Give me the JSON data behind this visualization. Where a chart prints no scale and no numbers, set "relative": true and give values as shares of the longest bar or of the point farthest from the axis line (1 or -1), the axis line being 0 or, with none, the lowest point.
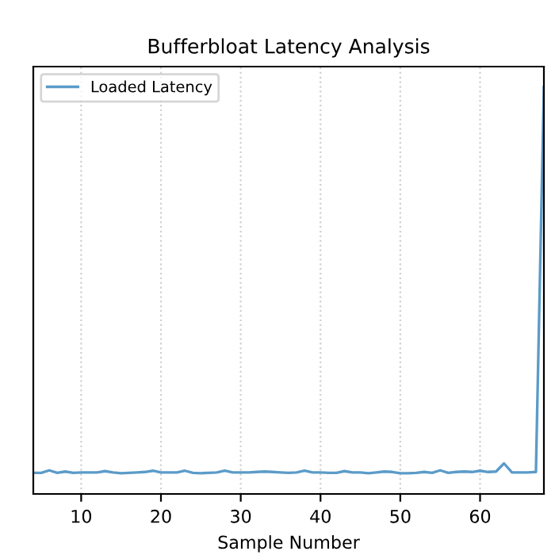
{
  "chart_data": {
    "type": "line",
    "title": "Bufferbloat Latency Analysis",
    "xlabel": "Sample Number",
    "relative": true,
    "x": [
      4,
      5,
      6,
      7,
      8,
      9,
      10,
      11,
      12,
      13,
      14,
      15,
      16,
      17,
      18,
      19,
      20,
      21,
      22,
      23,
      24,
      25,
      26,
      27,
      28,
      29,
      30,
      31,
      32,
      33,
      34,
      35,
      36,
      37,
      38,
      39,
      40,
      41,
      42,
      43,
      44,
      45,
      46,
      47,
      48,
      49,
      50,
      51,
      52,
      53,
      54,
      55,
      56,
      57,
      58,
      59,
      60,
      61,
      62,
      63,
      64,
      65,
      66,
      67,
      68
    ],
    "series": [
      {
        "name": "Loaded Latency",
        "color": "#5b9bc8",
        "values": [
          0.052,
          0.052,
          0.058,
          0.052,
          0.055,
          0.052,
          0.053,
          0.053,
          0.053,
          0.056,
          0.053,
          0.051,
          0.052,
          0.053,
          0.054,
          0.057,
          0.053,
          0.053,
          0.053,
          0.057,
          0.052,
          0.051,
          0.052,
          0.053,
          0.057,
          0.053,
          0.053,
          0.053,
          0.054,
          0.055,
          0.054,
          0.053,
          0.052,
          0.053,
          0.057,
          0.053,
          0.053,
          0.052,
          0.052,
          0.056,
          0.053,
          0.053,
          0.051,
          0.053,
          0.055,
          0.054,
          0.051,
          0.051,
          0.052,
          0.054,
          0.052,
          0.058,
          0.052,
          0.054,
          0.055,
          0.054,
          0.057,
          0.054,
          0.055,
          0.075,
          0.053,
          0.053,
          0.053,
          0.054,
          1
        ]
      }
    ],
    "xlim": [
      4,
      68
    ],
    "xticks": [
      10,
      20,
      30,
      40,
      50,
      60
    ],
    "tick_labels": "x",
    "grid": true,
    "legend": "top left"
  }
}
